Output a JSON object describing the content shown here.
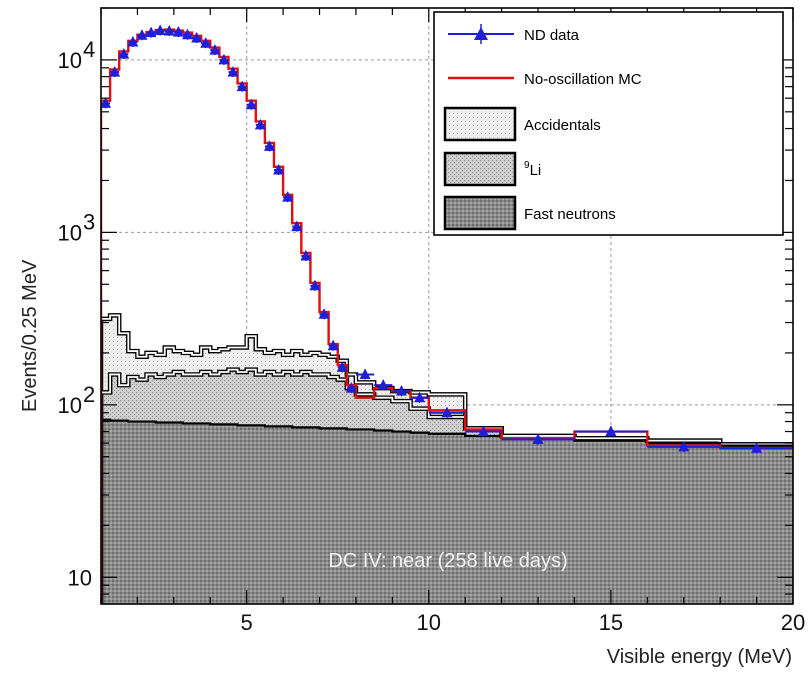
{
  "chart_data": {
    "type": "line",
    "title": "",
    "xlabel": "Visible energy (MeV)",
    "ylabel": "Events/0.25 MeV",
    "xlim": [
      1,
      20
    ],
    "ylim": [
      7,
      20000
    ],
    "yscale": "log",
    "grid": true,
    "legend_position": "top-right",
    "x_ticks": [
      5,
      10,
      15,
      20
    ],
    "y_ticks": [
      {
        "value": 10,
        "label": "10"
      },
      {
        "value": 100,
        "label": "10",
        "exponent": "2"
      },
      {
        "value": 1000,
        "label": "10",
        "exponent": "3"
      },
      {
        "value": 10000,
        "label": "10",
        "exponent": "4"
      }
    ],
    "legend": [
      {
        "label": "ND data",
        "style": "marker"
      },
      {
        "label": "No-oscillation MC",
        "style": "line"
      },
      {
        "label": "Accidentals",
        "style": "fill"
      },
      {
        "label": "Li",
        "superscript": "9",
        "style": "fill"
      },
      {
        "label": "Fast neutrons",
        "style": "fill"
      }
    ],
    "annotation": "DC IV: near (258 live days)",
    "colors": {
      "data": "#1f1fd6",
      "mc": "#e01010",
      "fast": "#8a8a8a",
      "li": "#bdbdbd",
      "acc": "#e6e6e6"
    },
    "bin_edges": [
      1.0,
      1.25,
      1.5,
      1.75,
      2.0,
      2.25,
      2.5,
      2.75,
      3.0,
      3.25,
      3.5,
      3.75,
      4.0,
      4.25,
      4.5,
      4.75,
      5.0,
      5.25,
      5.5,
      5.75,
      6.0,
      6.25,
      6.5,
      6.75,
      7.0,
      7.25,
      7.5,
      7.75,
      8.0,
      8.5,
      9.0,
      9.5,
      10.0,
      11.0,
      12.0,
      14.0,
      16.0,
      18.0,
      20.0
    ],
    "series": [
      {
        "name": "Fast neutrons",
        "type": "stacked-area",
        "values": [
          82,
          81,
          81,
          80,
          80,
          80,
          79,
          79,
          79,
          78,
          78,
          78,
          77,
          77,
          77,
          76,
          76,
          76,
          75,
          75,
          75,
          74,
          74,
          74,
          73,
          73,
          73,
          72,
          72,
          71,
          70,
          69,
          68,
          66,
          64,
          62,
          60,
          58
        ]
      },
      {
        "name": "Li",
        "superscript": "9",
        "type": "stacked-area",
        "values": [
          118,
          150,
          130,
          145,
          140,
          150,
          145,
          150,
          155,
          150,
          150,
          155,
          150,
          155,
          160,
          155,
          160,
          150,
          155,
          150,
          155,
          150,
          155,
          150,
          150,
          145,
          140,
          125,
          115,
          110,
          105,
          95,
          85,
          73,
          66,
          64,
          62,
          59
        ]
      },
      {
        "name": "Accidentals",
        "type": "stacked-area",
        "values": [
          315,
          330,
          260,
          205,
          190,
          200,
          195,
          215,
          205,
          200,
          195,
          215,
          205,
          210,
          215,
          215,
          250,
          210,
          200,
          205,
          195,
          205,
          195,
          200,
          195,
          190,
          180,
          150,
          135,
          125,
          120,
          118,
          115,
          73,
          66,
          64,
          62,
          59
        ]
      },
      {
        "name": "No-oscillation MC",
        "type": "step",
        "values": [
          5800,
          8800,
          11200,
          12900,
          14000,
          14500,
          14900,
          15000,
          14800,
          14400,
          13800,
          12900,
          11800,
          10400,
          8900,
          7300,
          5800,
          4400,
          3300,
          2400,
          1650,
          1130,
          760,
          510,
          345,
          225,
          170,
          130,
          110,
          125,
          120,
          110,
          93,
          72,
          64,
          70,
          58,
          56
        ]
      },
      {
        "name": "ND data",
        "type": "points",
        "x": [
          1.125,
          1.375,
          1.625,
          1.875,
          2.125,
          2.375,
          2.625,
          2.875,
          3.125,
          3.375,
          3.625,
          3.875,
          4.125,
          4.375,
          4.625,
          4.875,
          5.125,
          5.375,
          5.625,
          5.875,
          6.125,
          6.375,
          6.625,
          6.875,
          7.125,
          7.375,
          7.625,
          7.875,
          8.25,
          8.75,
          9.25,
          9.75,
          10.5,
          11.5,
          13.0,
          15.0,
          17.0,
          19.0
        ],
        "y": [
          5600,
          8500,
          10800,
          12700,
          13900,
          14400,
          14800,
          14700,
          14500,
          14000,
          13400,
          12500,
          11400,
          10000,
          8500,
          7000,
          5500,
          4200,
          3150,
          2300,
          1600,
          1080,
          730,
          490,
          335,
          220,
          165,
          125,
          150,
          130,
          120,
          110,
          90,
          70,
          63,
          70,
          57,
          56
        ],
        "x_err": [
          0.125,
          0.125,
          0.125,
          0.125,
          0.125,
          0.125,
          0.125,
          0.125,
          0.125,
          0.125,
          0.125,
          0.125,
          0.125,
          0.125,
          0.125,
          0.125,
          0.125,
          0.125,
          0.125,
          0.125,
          0.125,
          0.125,
          0.125,
          0.125,
          0.125,
          0.125,
          0.125,
          0.125,
          0.25,
          0.25,
          0.25,
          0.25,
          0.5,
          0.5,
          1.0,
          1.0,
          1.0,
          1.0
        ]
      }
    ]
  }
}
